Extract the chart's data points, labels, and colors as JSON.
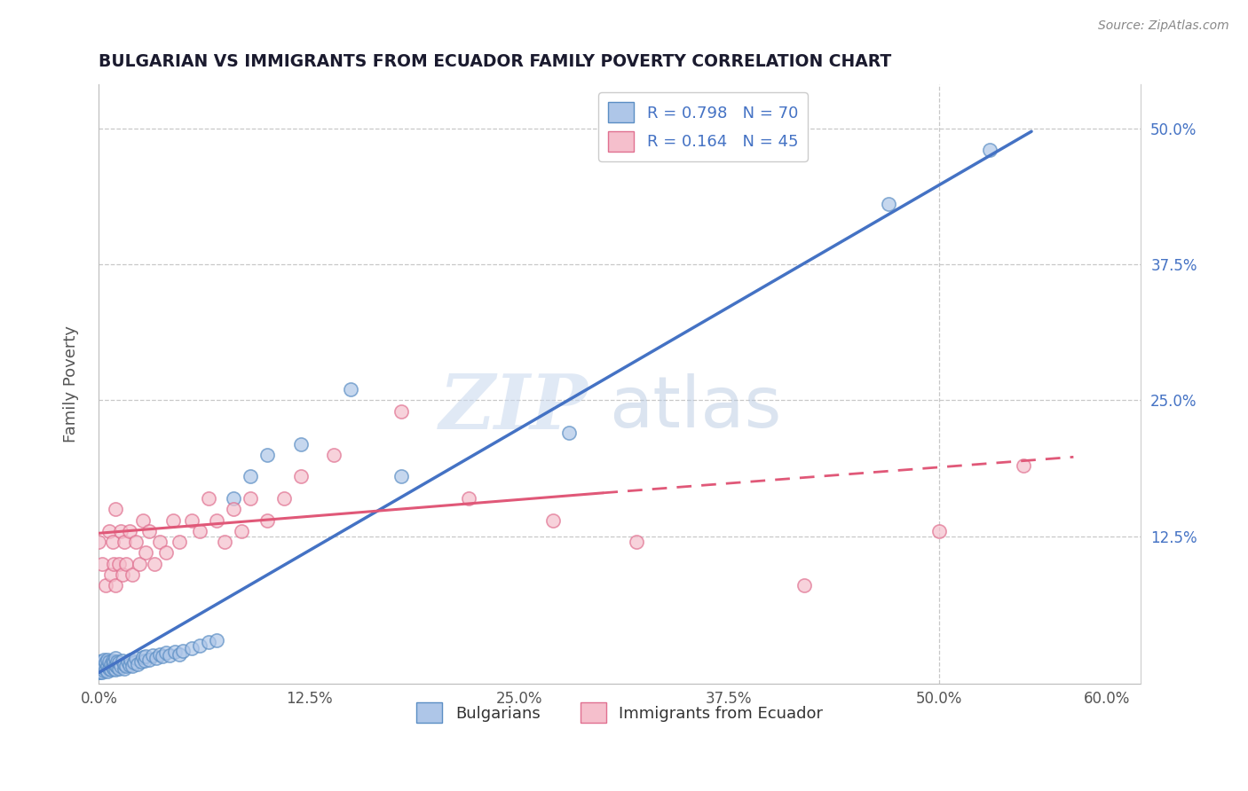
{
  "title": "BULGARIAN VS IMMIGRANTS FROM ECUADOR FAMILY POVERTY CORRELATION CHART",
  "source": "Source: ZipAtlas.com",
  "ylabel": "Family Poverty",
  "xlim": [
    0.0,
    0.62
  ],
  "ylim": [
    -0.01,
    0.54
  ],
  "xtick_positions": [
    0.0,
    0.125,
    0.25,
    0.375,
    0.5,
    0.6
  ],
  "xtick_labels": [
    "0.0%",
    "12.5%",
    "25.0%",
    "37.5%",
    "50.0%",
    "60.0%"
  ],
  "ytick_positions": [
    0.0,
    0.125,
    0.25,
    0.375,
    0.5
  ],
  "right_ytick_positions": [
    0.125,
    0.25,
    0.375,
    0.5
  ],
  "right_ytick_labels": [
    "12.5%",
    "25.0%",
    "37.5%",
    "50.0%"
  ],
  "blue_face_color": "#aec6e8",
  "blue_edge_color": "#5b8ec4",
  "pink_face_color": "#f5bfcc",
  "pink_edge_color": "#e07090",
  "blue_line_color": "#4472c4",
  "pink_line_color": "#e05878",
  "pink_line_solid_end": 0.3,
  "R_blue": 0.798,
  "N_blue": 70,
  "R_pink": 0.164,
  "N_pink": 45,
  "legend_label_blue": "Bulgarians",
  "legend_label_pink": "Immigrants from Ecuador",
  "watermark_zip": "ZIP",
  "watermark_atlas": "atlas",
  "title_color": "#1a1a2e",
  "source_color": "#888888",
  "axis_label_color": "#555555",
  "grid_color": "#c8c8c8",
  "blue_scatter_x": [
    0.0,
    0.0,
    0.0,
    0.001,
    0.001,
    0.002,
    0.002,
    0.002,
    0.003,
    0.003,
    0.003,
    0.004,
    0.004,
    0.005,
    0.005,
    0.005,
    0.006,
    0.006,
    0.007,
    0.007,
    0.008,
    0.008,
    0.009,
    0.009,
    0.01,
    0.01,
    0.01,
    0.011,
    0.011,
    0.012,
    0.012,
    0.013,
    0.014,
    0.015,
    0.015,
    0.016,
    0.017,
    0.018,
    0.019,
    0.02,
    0.021,
    0.022,
    0.023,
    0.025,
    0.026,
    0.027,
    0.028,
    0.03,
    0.032,
    0.034,
    0.036,
    0.038,
    0.04,
    0.042,
    0.045,
    0.048,
    0.05,
    0.055,
    0.06,
    0.065,
    0.07,
    0.08,
    0.09,
    0.1,
    0.12,
    0.15,
    0.18,
    0.28,
    0.47,
    0.53
  ],
  "blue_scatter_y": [
    0.0,
    0.005,
    0.01,
    0.0,
    0.008,
    0.0,
    0.005,
    0.01,
    0.002,
    0.007,
    0.012,
    0.003,
    0.009,
    0.001,
    0.006,
    0.012,
    0.004,
    0.01,
    0.003,
    0.008,
    0.005,
    0.011,
    0.004,
    0.009,
    0.003,
    0.007,
    0.013,
    0.005,
    0.01,
    0.004,
    0.009,
    0.006,
    0.011,
    0.004,
    0.008,
    0.006,
    0.01,
    0.007,
    0.012,
    0.006,
    0.009,
    0.013,
    0.008,
    0.01,
    0.014,
    0.011,
    0.015,
    0.012,
    0.016,
    0.013,
    0.017,
    0.015,
    0.018,
    0.016,
    0.019,
    0.017,
    0.02,
    0.022,
    0.025,
    0.028,
    0.03,
    0.16,
    0.18,
    0.2,
    0.21,
    0.26,
    0.18,
    0.22,
    0.43,
    0.48
  ],
  "pink_scatter_x": [
    0.0,
    0.002,
    0.004,
    0.006,
    0.007,
    0.008,
    0.009,
    0.01,
    0.01,
    0.012,
    0.013,
    0.014,
    0.015,
    0.016,
    0.018,
    0.02,
    0.022,
    0.024,
    0.026,
    0.028,
    0.03,
    0.033,
    0.036,
    0.04,
    0.044,
    0.048,
    0.055,
    0.06,
    0.065,
    0.07,
    0.075,
    0.08,
    0.085,
    0.09,
    0.1,
    0.11,
    0.12,
    0.14,
    0.18,
    0.22,
    0.27,
    0.32,
    0.42,
    0.5,
    0.55
  ],
  "pink_scatter_y": [
    0.12,
    0.1,
    0.08,
    0.13,
    0.09,
    0.12,
    0.1,
    0.08,
    0.15,
    0.1,
    0.13,
    0.09,
    0.12,
    0.1,
    0.13,
    0.09,
    0.12,
    0.1,
    0.14,
    0.11,
    0.13,
    0.1,
    0.12,
    0.11,
    0.14,
    0.12,
    0.14,
    0.13,
    0.16,
    0.14,
    0.12,
    0.15,
    0.13,
    0.16,
    0.14,
    0.16,
    0.18,
    0.2,
    0.24,
    0.16,
    0.14,
    0.12,
    0.08,
    0.13,
    0.19
  ],
  "blue_line_x": [
    0.0,
    0.555
  ],
  "blue_line_y": [
    0.0,
    0.497
  ],
  "pink_solid_line_x": [
    0.0,
    0.3
  ],
  "pink_solid_line_y": [
    0.128,
    0.165
  ],
  "pink_dash_line_x": [
    0.3,
    0.58
  ],
  "pink_dash_line_y": [
    0.165,
    0.198
  ]
}
